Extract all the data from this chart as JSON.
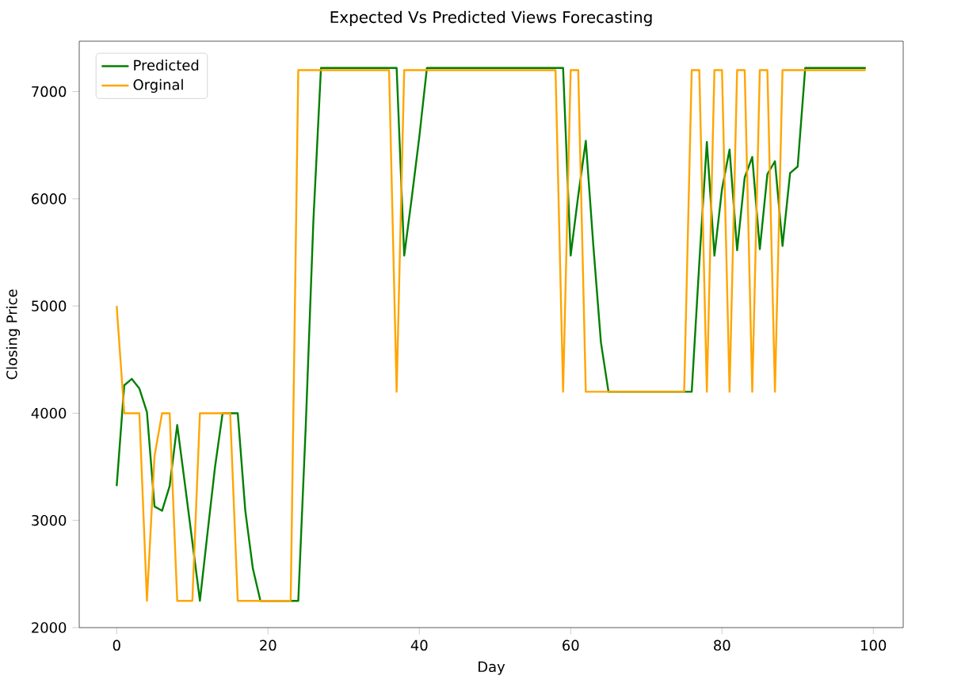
{
  "chart_data": {
    "type": "line",
    "title": "Expected Vs Predicted Views Forecasting",
    "xlabel": "Day",
    "ylabel": "Closing Price",
    "legend": "top left",
    "grid": false,
    "marker": "none",
    "line_style": "solid",
    "xlim": [
      -4.95,
      103.95
    ],
    "ylim": [
      2000,
      7470
    ],
    "xticks": [
      0,
      20,
      40,
      60,
      80,
      100
    ],
    "yticks": [
      2000,
      3000,
      4000,
      5000,
      6000,
      7000
    ],
    "series": [
      {
        "name": "Predicted",
        "color": "#008000",
        "x": [
          0,
          1,
          2,
          3,
          4,
          5,
          6,
          7,
          8,
          9,
          10,
          11,
          12,
          13,
          14,
          15,
          16,
          17,
          18,
          19,
          24,
          25,
          26,
          27,
          37,
          38,
          39,
          40,
          41,
          59,
          60,
          61,
          62,
          63,
          64,
          65,
          76,
          77,
          78,
          79,
          80,
          81,
          82,
          83,
          84,
          85,
          86,
          87,
          88,
          89,
          90,
          91,
          99
        ],
        "values": [
          3320,
          4260,
          4320,
          4230,
          4010,
          3130,
          3090,
          3320,
          3890,
          3350,
          2800,
          2250,
          2880,
          3500,
          4000,
          4000,
          4000,
          3090,
          2550,
          2250,
          2250,
          3900,
          5800,
          7220,
          7220,
          5470,
          6010,
          6580,
          7220,
          7220,
          5470,
          6030,
          6540,
          5560,
          4660,
          4200,
          4200,
          5400,
          6530,
          5470,
          6090,
          6460,
          5520,
          6200,
          6390,
          5530,
          6230,
          6350,
          5560,
          6240,
          6300,
          7220,
          7220
        ]
      },
      {
        "name": "Orginal",
        "color": "#ffa500",
        "x": [
          0,
          1,
          3,
          4,
          5,
          6,
          7,
          8,
          10,
          11,
          15,
          16,
          23,
          24,
          36,
          37,
          38,
          58,
          59,
          60,
          61,
          62,
          75,
          76,
          77,
          78,
          79,
          80,
          81,
          82,
          83,
          84,
          85,
          86,
          87,
          88,
          99
        ],
        "values": [
          5000,
          4000,
          4000,
          2250,
          3600,
          4000,
          4000,
          2250,
          2250,
          4000,
          4000,
          2250,
          2250,
          7200,
          7200,
          4200,
          7200,
          7200,
          4200,
          7200,
          7200,
          4200,
          4200,
          7200,
          7200,
          4200,
          7200,
          7200,
          4200,
          7200,
          7200,
          4200,
          7200,
          7200,
          4200,
          7200,
          7200
        ]
      }
    ]
  }
}
